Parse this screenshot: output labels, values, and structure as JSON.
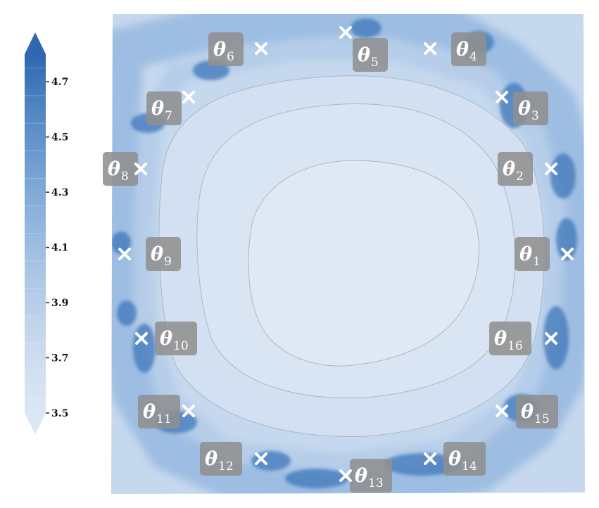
{
  "chart_data": {
    "type": "heatmap",
    "title": "",
    "xlabel": "",
    "ylabel": "",
    "colorbar": {
      "range": [
        3.5,
        4.8
      ],
      "ticks": [
        3.5,
        3.7,
        3.9,
        4.1,
        4.3,
        4.5,
        4.7
      ],
      "tick_labels": [
        "3.5",
        "3.7",
        "3.9",
        "4.1",
        "4.3",
        "4.5",
        "4.7"
      ],
      "extend": "both",
      "colormap": "Blues",
      "low_color": "#dce7f4",
      "high_color": "#2f68b0"
    },
    "annotations": [
      {
        "symbol": "θ",
        "subscript": "1",
        "value": 1
      },
      {
        "symbol": "θ",
        "subscript": "2",
        "value": 2
      },
      {
        "symbol": "θ",
        "subscript": "3",
        "value": 3
      },
      {
        "symbol": "θ",
        "subscript": "4",
        "value": 4
      },
      {
        "symbol": "θ",
        "subscript": "5",
        "value": 5
      },
      {
        "symbol": "θ",
        "subscript": "6",
        "value": 6
      },
      {
        "symbol": "θ",
        "subscript": "7",
        "value": 7
      },
      {
        "symbol": "θ",
        "subscript": "8",
        "value": 8
      },
      {
        "symbol": "θ",
        "subscript": "9",
        "value": 9
      },
      {
        "symbol": "θ",
        "subscript": "10",
        "value": 10
      },
      {
        "symbol": "θ",
        "subscript": "11",
        "value": 11
      },
      {
        "symbol": "θ",
        "subscript": "12",
        "value": 12
      },
      {
        "symbol": "θ",
        "subscript": "13",
        "value": 13
      },
      {
        "symbol": "θ",
        "subscript": "14",
        "value": 14
      },
      {
        "symbol": "θ",
        "subscript": "15",
        "value": 15
      },
      {
        "symbol": "θ",
        "subscript": "16",
        "value": 16
      }
    ],
    "marker": "×",
    "grid": false,
    "legend": "none"
  }
}
